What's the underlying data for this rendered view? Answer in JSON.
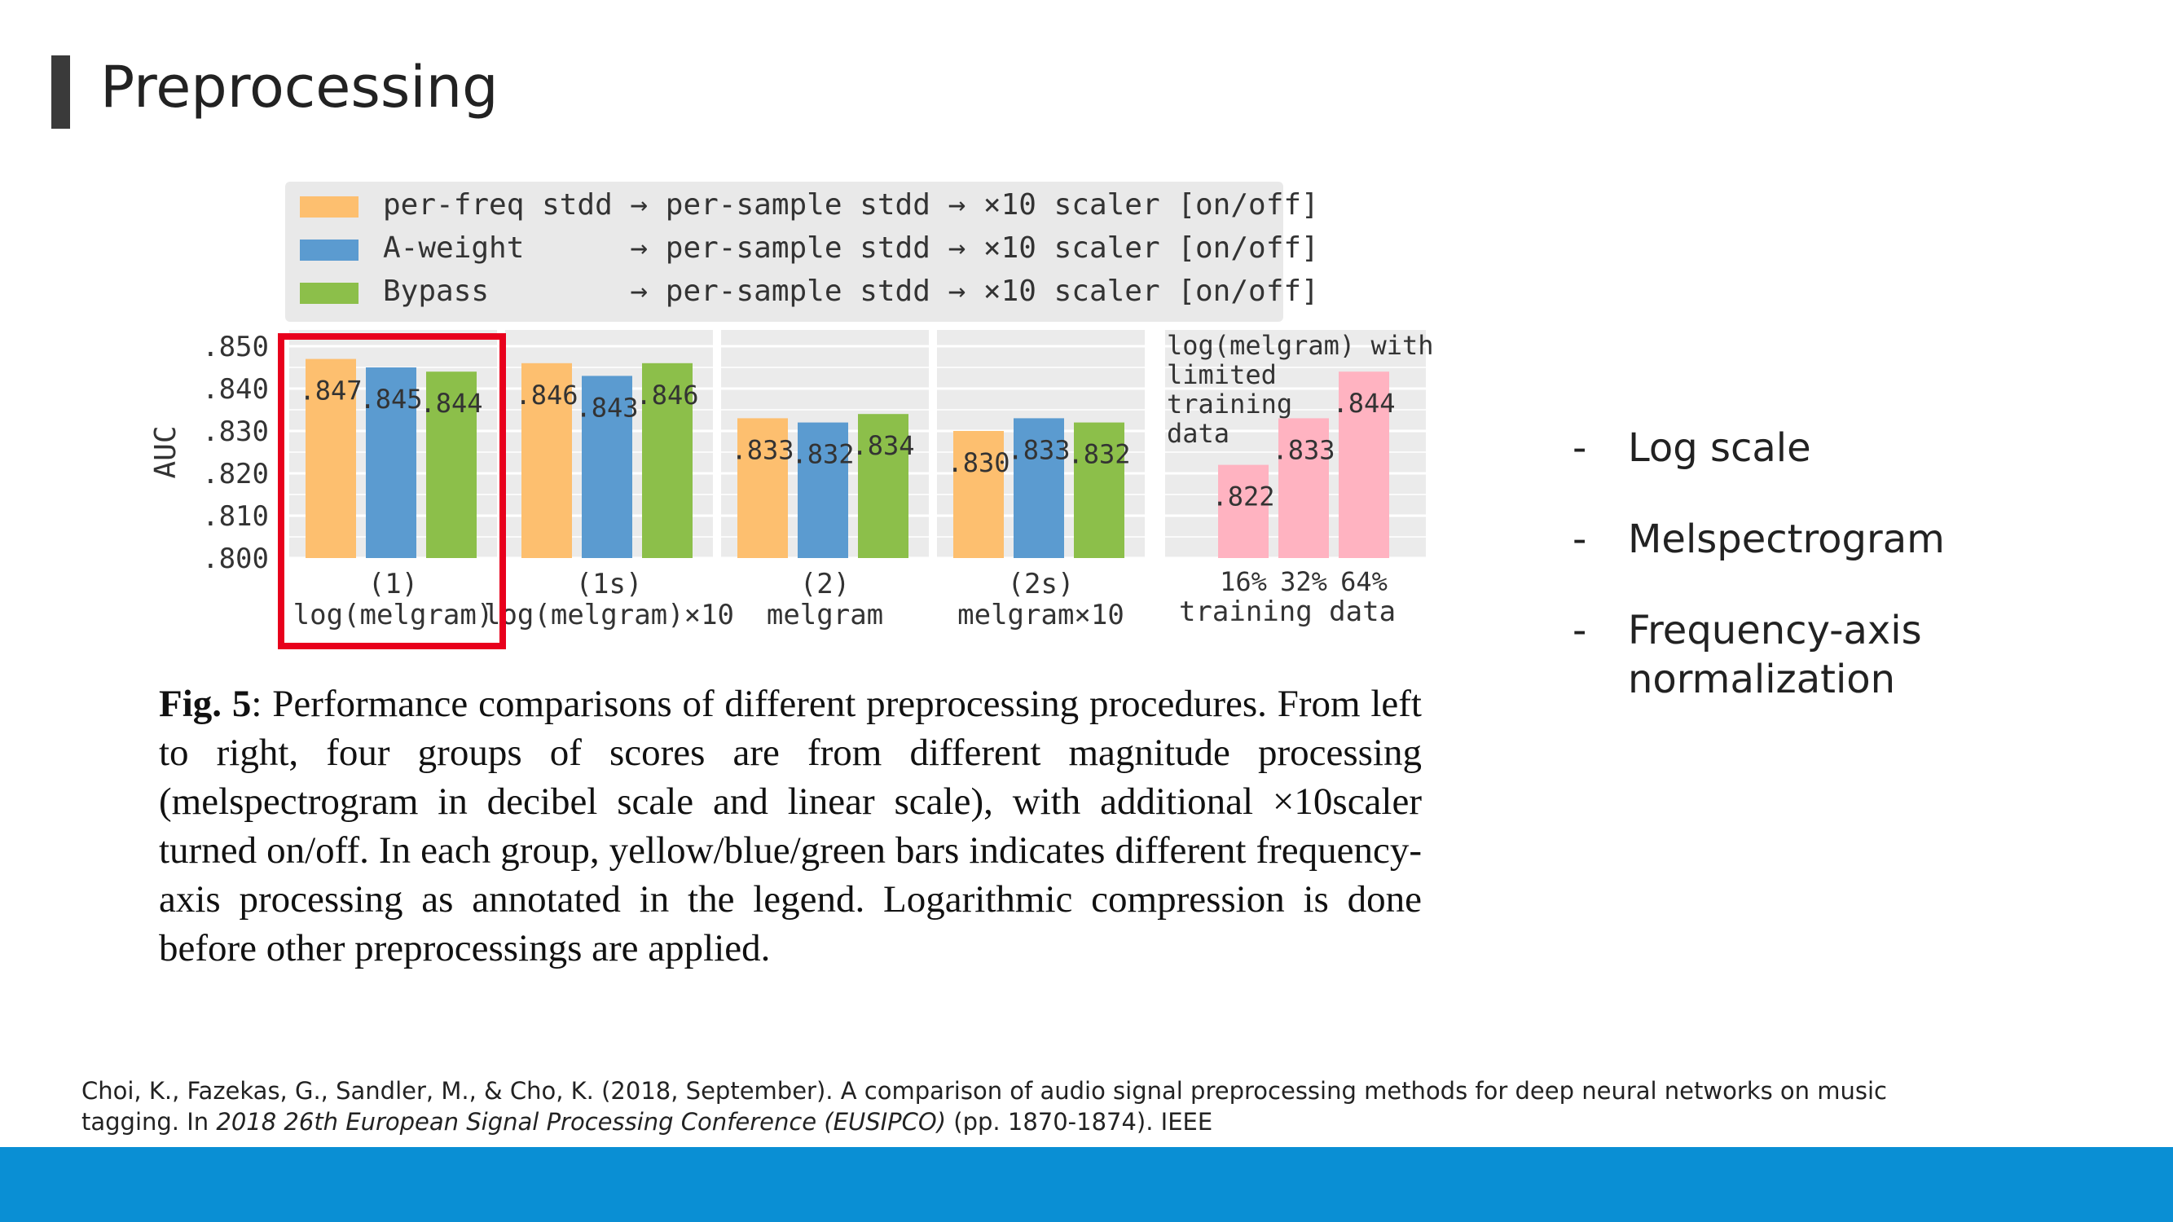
{
  "slide": {
    "title": "Preprocessing"
  },
  "chart_data": {
    "type": "bar",
    "ylabel": "AUC",
    "ylim": [
      0.8,
      0.85
    ],
    "yticks": [
      ".850",
      ".840",
      ".830",
      ".820",
      ".810",
      ".800"
    ],
    "legend": [
      {
        "label": "per-freq stdd → per-sample stdd → ×10 scaler [on/off]",
        "color": "#fdbf6f"
      },
      {
        "label": "A-weight      → per-sample stdd → ×10 scaler [on/off]",
        "color": "#5b9bd0"
      },
      {
        "label": "Bypass        → per-sample stdd → ×10 scaler [on/off]",
        "color": "#8cbf4a"
      }
    ],
    "groups": [
      {
        "label1": "(1)",
        "label2": "log(melgram)",
        "values": [
          0.847,
          0.845,
          0.844
        ],
        "labels": [
          ".847",
          ".845",
          ".844"
        ]
      },
      {
        "label1": "(1s)",
        "label2": "log(melgram)×10",
        "values": [
          0.846,
          0.843,
          0.846
        ],
        "labels": [
          ".846",
          ".843",
          ".846"
        ]
      },
      {
        "label1": "(2)",
        "label2": "melgram",
        "values": [
          0.833,
          0.832,
          0.834
        ],
        "labels": [
          ".833",
          ".832",
          ".834"
        ]
      },
      {
        "label1": "(2s)",
        "label2": "melgram×10",
        "values": [
          0.83,
          0.833,
          0.832
        ],
        "labels": [
          ".830",
          ".833",
          ".832"
        ]
      }
    ],
    "limited": {
      "annotation": [
        "log(melgram) with",
        "limited",
        "training",
        "data"
      ],
      "categories": [
        "16%",
        "32%",
        "64%"
      ],
      "xlabel": "training data",
      "values": [
        0.822,
        0.833,
        0.844
      ],
      "labels": [
        ".822",
        ".833",
        ".844"
      ],
      "color": "#ffb3c1"
    },
    "highlight_color": "#e8001c"
  },
  "caption": {
    "fig_label": "Fig. 5",
    "text": ":  Performance comparisons of different preprocessing procedures. From left to right, four groups of scores are from different magnitude processing (melspectrogram in decibel scale and linear scale), with additional ×10scaler turned on/off.  In each group, yellow/blue/green bars indicates different frequency-axis processing as annotated in the legend. Logarithmic compression is done before other preprocessings are applied."
  },
  "bullets": [
    {
      "dash": "-",
      "text": "Log scale"
    },
    {
      "dash": "-",
      "text": "Melspectrogram"
    },
    {
      "dash": "-",
      "text": "Frequency-axis normalization"
    }
  ],
  "citation": {
    "pre": "Choi, K., Fazekas, G., Sandler, M., & Cho, K. (2018, September). A comparison of audio signal preprocessing methods for deep neural networks on music tagging. In ",
    "venue": "2018 26th European Signal Processing Conference (EUSIPCO)",
    "post": " (pp. 1870-1874). IEEE"
  },
  "colors": {
    "footer": "#0a8fd4",
    "title_bar": "#3a3a3a"
  }
}
